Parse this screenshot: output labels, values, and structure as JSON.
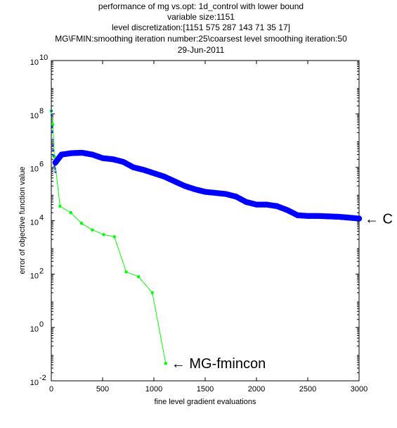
{
  "chart_data": {
    "type": "line",
    "title_lines": [
      "performance of mg vs.opt:   1d_control with lower bound",
      "variable size:1151",
      "level discretization:[1151 575 287 143 71 35 17]",
      "MG\\FMIN:smoothing iteration number:25\\coarsest level smoothing iteration:50",
      "29-Jun-2011"
    ],
    "xlabel": "fine level gradient evaluations",
    "ylabel": "error of objective function value",
    "xlim": [
      0,
      3000
    ],
    "ylim": [
      0.01,
      10000000000
    ],
    "yscale": "log",
    "grid": false,
    "x_ticks": [
      {
        "value": 0,
        "label": "0"
      },
      {
        "value": 500,
        "label": "500"
      },
      {
        "value": 1000,
        "label": "1000"
      },
      {
        "value": 1500,
        "label": "1500"
      },
      {
        "value": 2000,
        "label": "2000"
      },
      {
        "value": 2500,
        "label": "2500"
      },
      {
        "value": 3000,
        "label": "3000"
      }
    ],
    "y_ticks": [
      {
        "value": 0.01,
        "base": "10",
        "exp": "-2"
      },
      {
        "value": 1,
        "base": "10",
        "exp": "0"
      },
      {
        "value": 100,
        "base": "10",
        "exp": "2"
      },
      {
        "value": 10000,
        "base": "10",
        "exp": "4"
      },
      {
        "value": 1000000,
        "base": "10",
        "exp": "6"
      },
      {
        "value": 100000000,
        "base": "10",
        "exp": "8"
      },
      {
        "value": 10000000000,
        "base": "10",
        "exp": "10"
      }
    ],
    "annotations": [
      {
        "text": "← MG-fmincon",
        "series": "MG-fmincon"
      },
      {
        "text": "← C",
        "series": "C"
      }
    ],
    "series": [
      {
        "name": "MG-fmincon",
        "color": "#00ff00",
        "marker": "dot",
        "points": [
          {
            "x": 0,
            "y": 130000000
          },
          {
            "x": 15,
            "y": 40000000
          },
          {
            "x": 30,
            "y": 2500000
          },
          {
            "x": 85,
            "y": 35000
          },
          {
            "x": 190,
            "y": 20000
          },
          {
            "x": 295,
            "y": 8000
          },
          {
            "x": 400,
            "y": 4500
          },
          {
            "x": 510,
            "y": 3000
          },
          {
            "x": 615,
            "y": 2500
          },
          {
            "x": 730,
            "y": 120
          },
          {
            "x": 850,
            "y": 80
          },
          {
            "x": 985,
            "y": 20
          },
          {
            "x": 1115,
            "y": 0.045
          }
        ]
      },
      {
        "name": "C",
        "color": "#0000ff",
        "marker": "star-dense",
        "cluster_points": [
          {
            "x": 3,
            "y": 120000000
          },
          {
            "x": 5,
            "y": 80000000
          },
          {
            "x": 8,
            "y": 30000000
          },
          {
            "x": 10,
            "y": 20000000
          },
          {
            "x": 12,
            "y": 10000000
          },
          {
            "x": 15,
            "y": 6000000
          },
          {
            "x": 18,
            "y": 4000000
          },
          {
            "x": 20,
            "y": 2500000
          },
          {
            "x": 25,
            "y": 1500000
          },
          {
            "x": 30,
            "y": 1000000
          },
          {
            "x": 35,
            "y": 800000
          },
          {
            "x": 40,
            "y": 600000
          }
        ],
        "points": [
          {
            "x": 40,
            "y": 1500000
          },
          {
            "x": 100,
            "y": 3000000
          },
          {
            "x": 200,
            "y": 3400000
          },
          {
            "x": 300,
            "y": 3500000
          },
          {
            "x": 400,
            "y": 3000000
          },
          {
            "x": 500,
            "y": 2200000
          },
          {
            "x": 600,
            "y": 2000000
          },
          {
            "x": 700,
            "y": 1600000
          },
          {
            "x": 800,
            "y": 1000000
          },
          {
            "x": 900,
            "y": 800000
          },
          {
            "x": 1000,
            "y": 600000
          },
          {
            "x": 1100,
            "y": 450000
          },
          {
            "x": 1200,
            "y": 300000
          },
          {
            "x": 1300,
            "y": 200000
          },
          {
            "x": 1400,
            "y": 150000
          },
          {
            "x": 1500,
            "y": 120000
          },
          {
            "x": 1600,
            "y": 110000
          },
          {
            "x": 1700,
            "y": 100000
          },
          {
            "x": 1800,
            "y": 80000
          },
          {
            "x": 1900,
            "y": 50000
          },
          {
            "x": 2000,
            "y": 40000
          },
          {
            "x": 2100,
            "y": 40000
          },
          {
            "x": 2200,
            "y": 35000
          },
          {
            "x": 2300,
            "y": 25000
          },
          {
            "x": 2400,
            "y": 16000
          },
          {
            "x": 2500,
            "y": 15000
          },
          {
            "x": 2600,
            "y": 15000
          },
          {
            "x": 2700,
            "y": 14500
          },
          {
            "x": 2800,
            "y": 14000
          },
          {
            "x": 2900,
            "y": 13000
          },
          {
            "x": 3000,
            "y": 12000
          }
        ]
      }
    ]
  }
}
